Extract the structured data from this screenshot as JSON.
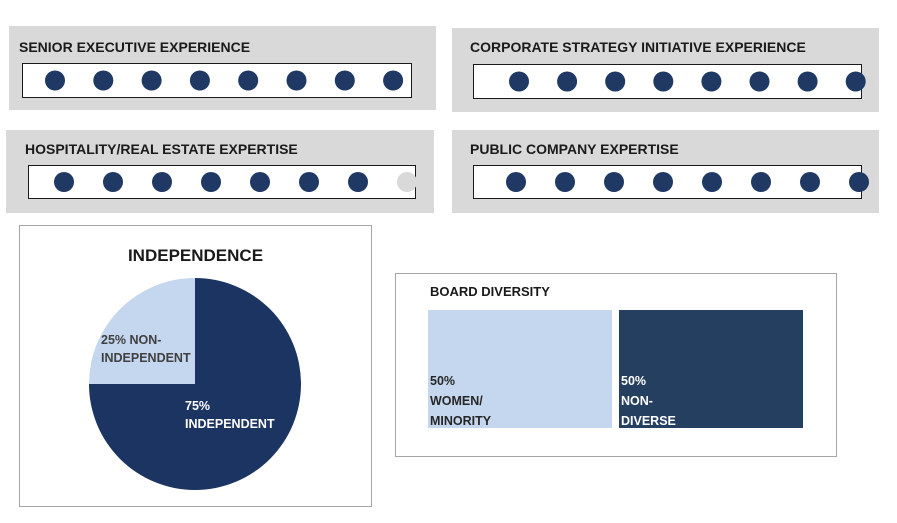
{
  "chart_data": [
    {
      "type": "dots",
      "title": "SENIOR EXECUTIVE EXPERIENCE",
      "value": 8,
      "max": 8,
      "color": "#1f3864",
      "empty_color": "#d9d9d9"
    },
    {
      "type": "dots",
      "title": "CORPORATE STRATEGY INITIATIVE EXPERIENCE",
      "value": 8,
      "max": 8,
      "color": "#1f3864",
      "empty_color": "#d9d9d9"
    },
    {
      "type": "dots",
      "title": "HOSPITALITY/REAL ESTATE EXPERTISE",
      "value": 7,
      "max": 8,
      "color": "#1f3864",
      "empty_color": "#d9d9d9"
    },
    {
      "type": "dots",
      "title": "PUBLIC COMPANY EXPERTISE",
      "value": 8,
      "max": 8,
      "color": "#1f3864",
      "empty_color": "#d9d9d9"
    },
    {
      "type": "pie",
      "title": "INDEPENDENCE",
      "categories": [
        "NON-INDEPENDENT",
        "INDEPENDENT"
      ],
      "values": [
        25,
        75
      ],
      "value_labels": [
        "25%",
        "75%"
      ],
      "colors": [
        "#c5d7ef",
        "#1c3461"
      ],
      "label_colors": [
        "#404040",
        "#ffffff"
      ]
    },
    {
      "type": "blocks",
      "title": "BOARD DIVERSITY",
      "categories": [
        "WOMEN/ MINORITY",
        "NON-DIVERSE"
      ],
      "values": [
        50,
        50
      ],
      "value_labels": [
        "50%",
        "50%"
      ],
      "colors": [
        "#c5d7ef",
        "#243f60"
      ],
      "label_colors": [
        "#262626",
        "#ffffff"
      ]
    }
  ]
}
